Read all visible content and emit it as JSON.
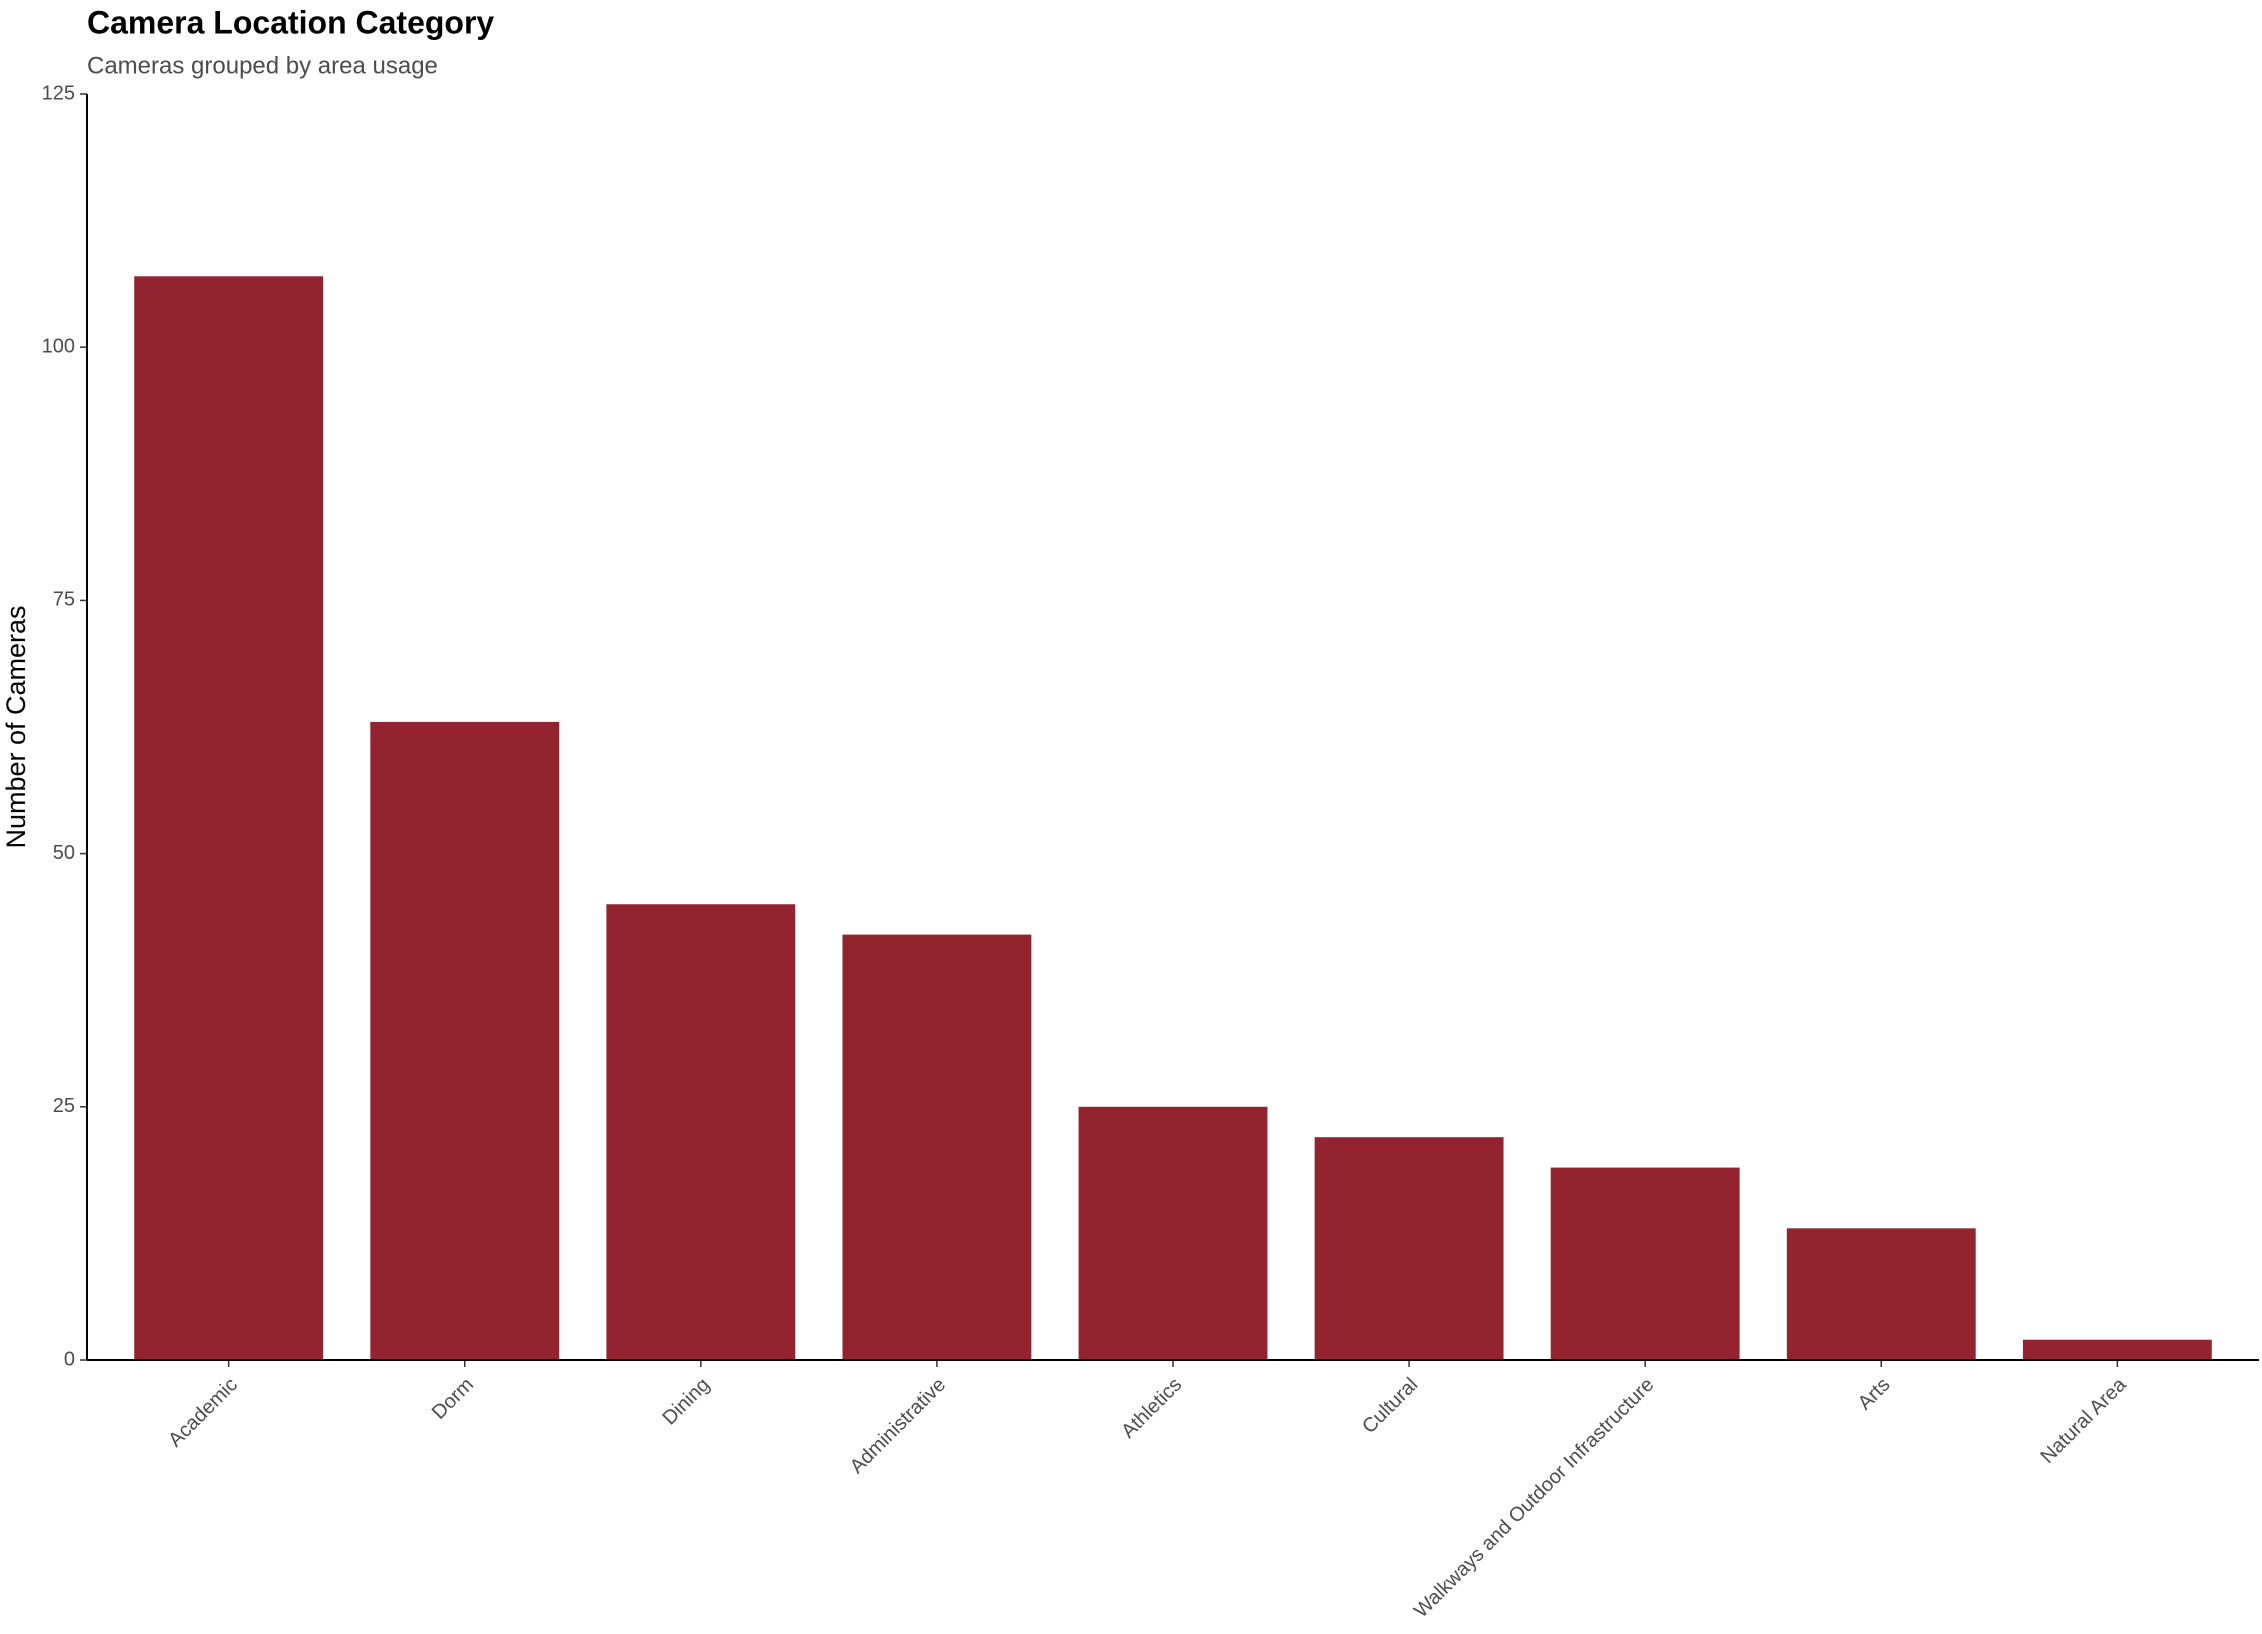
{
  "chart_data": {
    "type": "bar",
    "title": "Camera Location Category",
    "subtitle": "Cameras grouped by area usage",
    "y_label": "Number of Cameras",
    "categories": [
      "Academic",
      "Dorm",
      "Dining",
      "Administrative",
      "Athletics",
      "Cultural",
      "Walkways and Outdoor Infrastructure",
      "Arts",
      "Natural Area"
    ],
    "values": [
      107,
      63,
      45,
      42,
      25,
      22,
      19,
      13,
      2
    ],
    "color": "#93242f",
    "ylim": [
      0,
      125
    ],
    "yticks": [
      0,
      25,
      50,
      75,
      100,
      125
    ],
    "grid": false
  }
}
